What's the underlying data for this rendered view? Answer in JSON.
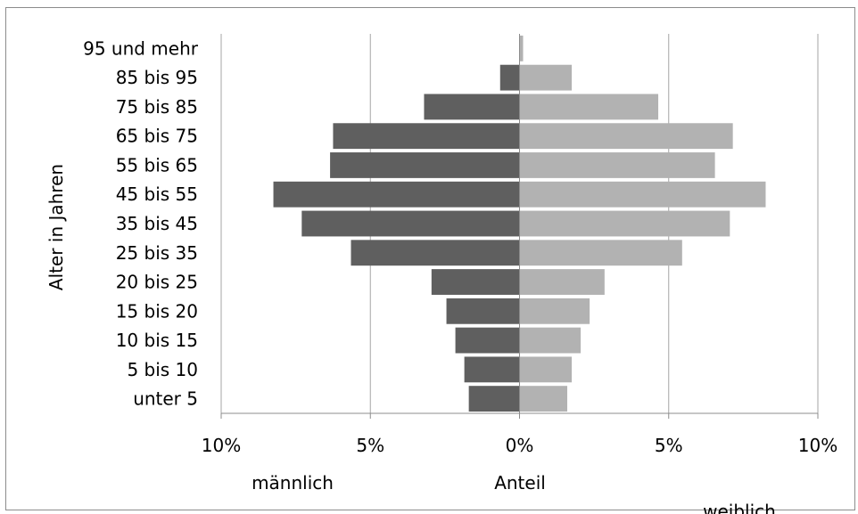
{
  "chart_data": {
    "type": "bar",
    "orientation": "horizontal",
    "title": "",
    "xlabel": "Anteil",
    "ylabel": "Alter in Jahren",
    "side_labels": {
      "left": "männlich",
      "right": "weiblich"
    },
    "categories": [
      "unter 5",
      "5 bis 10",
      "10 bis 15",
      "15 bis 20",
      "20 bis 25",
      "25 bis 35",
      "35 bis 45",
      "45 bis 55",
      "55 bis 65",
      "65 bis 75",
      "75 bis 85",
      "85 bis 95",
      "95 und mehr"
    ],
    "series": [
      {
        "values": [
          -1.7,
          -1.85,
          -2.15,
          -2.45,
          -2.95,
          -5.65,
          -7.3,
          -8.25,
          -6.35,
          -6.25,
          -3.2,
          -0.65,
          0
        ],
        "color": "#5f5f5f"
      },
      {
        "values": [
          1.6,
          1.75,
          2.05,
          2.35,
          2.85,
          5.45,
          7.05,
          8.25,
          6.55,
          7.15,
          4.65,
          1.75,
          0.12
        ],
        "color": "#b2b2b2"
      }
    ],
    "xlim": [
      -10,
      10
    ],
    "xticks": [
      -10,
      -5,
      0,
      5,
      10
    ],
    "xtick_labels": [
      "10%",
      "5%",
      "0%",
      "5%",
      "10%"
    ],
    "grid": "vertical",
    "gridline_color": "#a6a6a6"
  }
}
